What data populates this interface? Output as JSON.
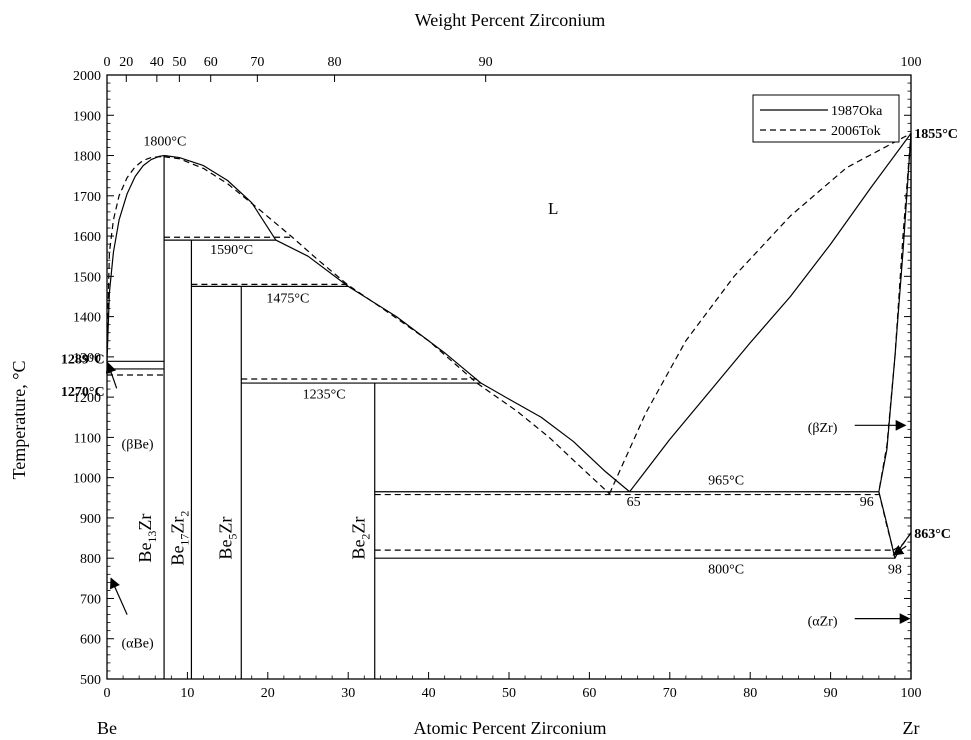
{
  "chart_data": {
    "type": "line",
    "title": "",
    "top_axis_label": "Weight Percent Zirconium",
    "xlabel": "Atomic Percent Zirconium",
    "ylabel": "Temperature, °C",
    "x_left_label": "Be",
    "x_right_label": "Zr",
    "xlim": [
      0,
      100
    ],
    "ylim": [
      500,
      2000
    ],
    "x_ticks": [
      0,
      10,
      20,
      30,
      40,
      50,
      60,
      70,
      80,
      90,
      100
    ],
    "y_ticks": [
      500,
      600,
      700,
      800,
      900,
      1000,
      1100,
      1200,
      1300,
      1400,
      1500,
      1600,
      1700,
      1800,
      1900,
      2000
    ],
    "top_ticks": [
      {
        "label": "0",
        "at": 0.0
      },
      {
        "label": "20",
        "at": 2.4
      },
      {
        "label": "40",
        "at": 6.2
      },
      {
        "label": "50",
        "at": 9.0
      },
      {
        "label": "60",
        "at": 12.9
      },
      {
        "label": "70",
        "at": 18.7
      },
      {
        "label": "80",
        "at": 28.3
      },
      {
        "label": "90",
        "at": 47.1
      },
      {
        "label": "100",
        "at": 100
      }
    ],
    "legend": {
      "position": "top-right",
      "entries": [
        {
          "label": "1987Oka",
          "style": "solid"
        },
        {
          "label": "2006Tok",
          "style": "dashed"
        }
      ]
    },
    "series": [
      {
        "name": "1987Oka",
        "style": "solid",
        "segments": [
          [
            [
              0,
              1289
            ],
            [
              0.3,
              1460
            ],
            [
              0.8,
              1560
            ],
            [
              1.5,
              1640
            ],
            [
              2.5,
              1705
            ],
            [
              3.5,
              1748
            ],
            [
              4.5,
              1775
            ],
            [
              5.5,
              1790
            ],
            [
              6.5,
              1798
            ],
            [
              7.1,
              1800
            ]
          ],
          [
            [
              7.1,
              1800
            ],
            [
              9,
              1795
            ],
            [
              12,
              1775
            ],
            [
              15,
              1738
            ],
            [
              18,
              1683
            ],
            [
              21,
              1590
            ],
            [
              25,
              1550
            ],
            [
              30,
              1475
            ],
            [
              36,
              1400
            ],
            [
              42,
              1310
            ],
            [
              46.5,
              1235
            ],
            [
              50,
              1195
            ],
            [
              54,
              1150
            ],
            [
              58,
              1090
            ],
            [
              62,
              1015
            ],
            [
              65,
              965
            ]
          ],
          [
            [
              65,
              965
            ],
            [
              70,
              1095
            ],
            [
              75,
              1215
            ],
            [
              80,
              1335
            ],
            [
              85,
              1450
            ],
            [
              90,
              1580
            ],
            [
              95,
              1720
            ],
            [
              100,
              1855
            ]
          ],
          [
            [
              100,
              1855
            ],
            [
              99,
              1560
            ],
            [
              98,
              1300
            ],
            [
              97,
              1070
            ],
            [
              96,
              965
            ]
          ],
          [
            [
              96,
              965
            ],
            [
              97,
              885
            ],
            [
              98,
              800
            ],
            [
              98.8,
              830
            ],
            [
              100,
              863
            ]
          ],
          [
            [
              7.1,
              500
            ],
            [
              7.1,
              1800
            ]
          ],
          [
            [
              10.5,
              500
            ],
            [
              10.5,
              1590
            ]
          ],
          [
            [
              16.7,
              500
            ],
            [
              16.7,
              1475
            ]
          ],
          [
            [
              33.3,
              500
            ],
            [
              33.3,
              1235
            ]
          ],
          [
            [
              0,
              1289
            ],
            [
              7.1,
              1289
            ]
          ],
          [
            [
              0,
              1270
            ],
            [
              7.1,
              1270
            ]
          ],
          [
            [
              7.1,
              1590
            ],
            [
              21,
              1590
            ]
          ],
          [
            [
              10.5,
              1475
            ],
            [
              30,
              1475
            ]
          ],
          [
            [
              16.7,
              1235
            ],
            [
              46.5,
              1235
            ]
          ],
          [
            [
              33.3,
              965
            ],
            [
              96,
              965
            ]
          ],
          [
            [
              33.3,
              800
            ],
            [
              98,
              800
            ]
          ],
          [
            [
              100,
              500
            ],
            [
              100,
              1855
            ]
          ]
        ]
      },
      {
        "name": "2006Tok",
        "style": "dashed",
        "segments": [
          [
            [
              0,
              1320
            ],
            [
              0.3,
              1560
            ],
            [
              0.8,
              1640
            ],
            [
              1.5,
              1700
            ],
            [
              2.5,
              1745
            ],
            [
              3.5,
              1772
            ],
            [
              4.5,
              1788
            ],
            [
              5.5,
              1795
            ],
            [
              6.5,
              1797
            ],
            [
              7.1,
              1797
            ]
          ],
          [
            [
              7.1,
              1797
            ],
            [
              9,
              1792
            ],
            [
              12,
              1768
            ],
            [
              15,
              1730
            ],
            [
              19,
              1665
            ],
            [
              23,
              1598
            ],
            [
              26,
              1545
            ],
            [
              30,
              1478
            ],
            [
              35,
              1410
            ],
            [
              40,
              1340
            ],
            [
              46,
              1235
            ],
            [
              51,
              1165
            ],
            [
              55,
              1100
            ],
            [
              59,
              1025
            ],
            [
              62.5,
              960
            ]
          ],
          [
            [
              62.5,
              960
            ],
            [
              67,
              1160
            ],
            [
              72,
              1340
            ],
            [
              78,
              1500
            ],
            [
              85,
              1650
            ],
            [
              92,
              1770
            ],
            [
              100,
              1855
            ]
          ],
          [
            [
              100,
              1855
            ],
            [
              99,
              1600
            ],
            [
              98,
              1300
            ],
            [
              97,
              1080
            ],
            [
              96,
              965
            ]
          ],
          [
            [
              96,
              965
            ],
            [
              97,
              880
            ],
            [
              97.8,
              820
            ],
            [
              99,
              835
            ],
            [
              100,
              863
            ]
          ],
          [
            [
              0,
              1255
            ],
            [
              7.1,
              1255
            ]
          ],
          [
            [
              7.1,
              1597
            ],
            [
              23,
              1597
            ]
          ],
          [
            [
              10.5,
              1480
            ],
            [
              30,
              1480
            ]
          ],
          [
            [
              16.7,
              1245
            ],
            [
              46,
              1245
            ]
          ],
          [
            [
              33.3,
              958
            ],
            [
              96,
              958
            ]
          ],
          [
            [
              33.3,
              820
            ],
            [
              98,
              820
            ]
          ]
        ]
      }
    ],
    "annotations": [
      {
        "text": "1800°C",
        "x": 7.2,
        "y": 1825,
        "bold": false,
        "anchor": "middle"
      },
      {
        "text": "L",
        "x": 55.5,
        "y": 1655,
        "bold": false,
        "anchor": "middle"
      },
      {
        "text": "1590°C",
        "x": 15.5,
        "y": 1555,
        "bold": false,
        "anchor": "middle"
      },
      {
        "text": "1475°C",
        "x": 22.5,
        "y": 1435,
        "bold": false,
        "anchor": "middle"
      },
      {
        "text": "1235°C",
        "x": 27,
        "y": 1197,
        "bold": false,
        "anchor": "middle"
      },
      {
        "text": "965°C",
        "x": 77,
        "y": 983,
        "bold": false,
        "anchor": "middle"
      },
      {
        "text": "65",
        "x": 65.5,
        "y": 930,
        "bold": false,
        "anchor": "middle"
      },
      {
        "text": "96",
        "x": 94.5,
        "y": 930,
        "bold": false,
        "anchor": "middle"
      },
      {
        "text": "800°C",
        "x": 77,
        "y": 762,
        "bold": false,
        "anchor": "middle"
      },
      {
        "text": "98",
        "x": 98,
        "y": 762,
        "bold": false,
        "anchor": "middle"
      },
      {
        "text": "1855°C",
        "x": 100.4,
        "y": 1844,
        "bold": true,
        "anchor": "start"
      },
      {
        "text": "1289°C",
        "x": -0.3,
        "y": 1283,
        "bold": true,
        "anchor": "end"
      },
      {
        "text": "1270°C",
        "x": -0.3,
        "y": 1203,
        "bold": true,
        "anchor": "end"
      },
      {
        "text": "863°C",
        "x": 100.4,
        "y": 850,
        "bold": true,
        "anchor": "start"
      },
      {
        "text": "(βBe)",
        "x": 3.8,
        "y": 1073,
        "bold": false,
        "anchor": "middle"
      },
      {
        "text": "(αBe)",
        "x": 3.8,
        "y": 578,
        "bold": false,
        "anchor": "middle"
      },
      {
        "text": "(βZr)",
        "x": 89,
        "y": 1113,
        "bold": false,
        "anchor": "middle"
      },
      {
        "text": "(αZr)",
        "x": 89,
        "y": 633,
        "bold": false,
        "anchor": "middle"
      }
    ],
    "phase_labels": [
      {
        "base": "Be",
        "sub1": "13",
        "mid": "Zr",
        "sub2": "",
        "x": 5.5,
        "y": 850
      },
      {
        "base": "Be",
        "sub1": "17",
        "mid": "Zr",
        "sub2": "2",
        "x": 9.5,
        "y": 850
      },
      {
        "base": "Be",
        "sub1": "5",
        "mid": "Zr",
        "sub2": "",
        "x": 15.5,
        "y": 850
      },
      {
        "base": "Be",
        "sub1": "2",
        "mid": "Zr",
        "sub2": "",
        "x": 32,
        "y": 850
      }
    ],
    "arrows": [
      {
        "from": [
          1.2,
          1222
        ],
        "to": [
          0.1,
          1285
        ]
      },
      {
        "from": [
          2.5,
          660
        ],
        "to": [
          0.5,
          750
        ]
      },
      {
        "from": [
          93,
          1130
        ],
        "to": [
          99.3,
          1130
        ]
      },
      {
        "from": [
          93,
          650
        ],
        "to": [
          99.8,
          650
        ]
      },
      {
        "from": [
          99.4,
          830
        ],
        "to": [
          97.8,
          808
        ]
      }
    ]
  }
}
